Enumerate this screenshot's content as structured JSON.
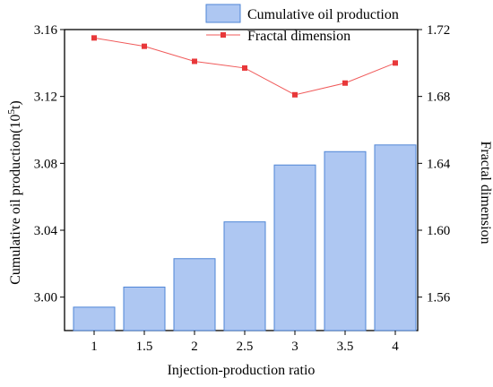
{
  "chart_data": {
    "type": "bar+line",
    "categories": [
      "1",
      "1.5",
      "2",
      "2.5",
      "3",
      "3.5",
      "4"
    ],
    "series": [
      {
        "name": "Cumulative oil production",
        "type": "bar",
        "axis": "left",
        "values": [
          2.994,
          3.006,
          3.023,
          3.045,
          3.079,
          3.087,
          3.091
        ],
        "color": "#aec7f2",
        "stroke": "#4f86d6"
      },
      {
        "name": "Fractal dimension",
        "type": "line",
        "axis": "right",
        "values": [
          1.715,
          1.71,
          1.701,
          1.697,
          1.681,
          1.688,
          1.7
        ],
        "color": "#f05a5a",
        "marker_color": "#e8383a"
      }
    ],
    "xlabel": "Injection-production ratio",
    "ylabel_left_main": "Cumulative oil production(10",
    "ylabel_left_sup": "5",
    "ylabel_left_end": "t)",
    "ylabel_right": "Fractal dimension",
    "ylim_left": [
      2.98,
      3.16
    ],
    "ylim_right": [
      1.54,
      1.72
    ],
    "yticks_left": [
      "3.00",
      "3.04",
      "3.08",
      "3.12",
      "3.16"
    ],
    "yticks_right": [
      "1.56",
      "1.60",
      "1.64",
      "1.68",
      "1.72"
    ],
    "legend_position": "top-right",
    "grid": false
  }
}
